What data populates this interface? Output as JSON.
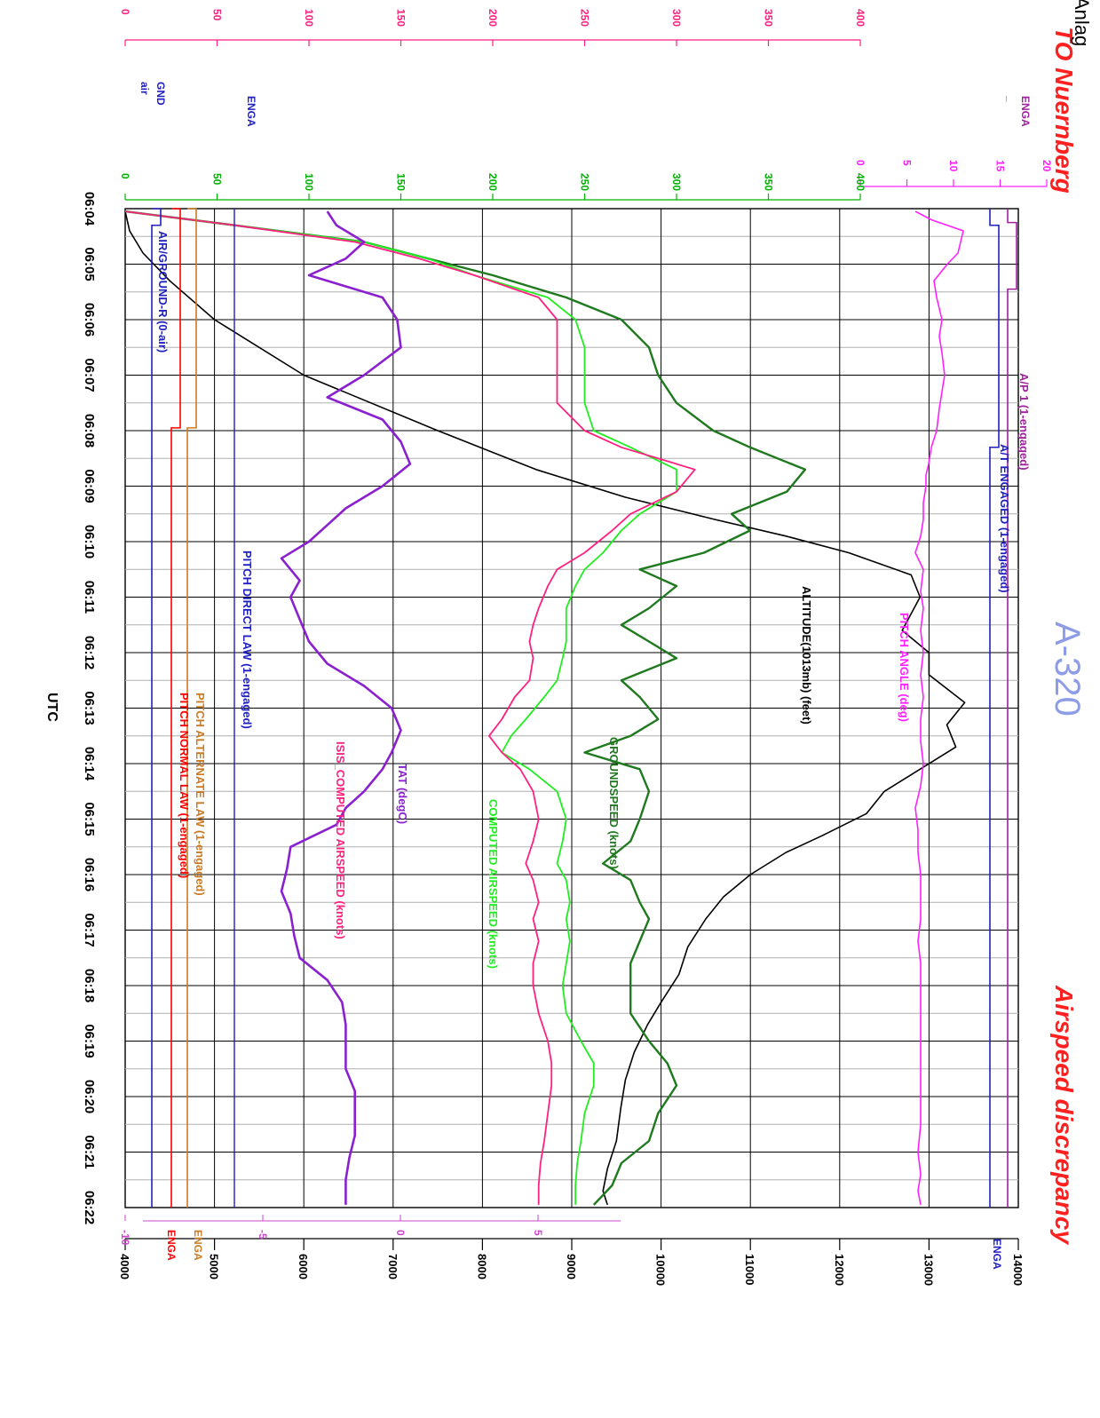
{
  "title": {
    "left": "TO Nuernberg",
    "right": "Airspeed   discrepancy",
    "aircraft": "A-320",
    "corner": "Anlag",
    "utc": "UTC"
  },
  "colors": {
    "red_title": "#ff2020",
    "aircraft": "#8c9ce6",
    "black": "#000000",
    "green": "#00b300",
    "dark_green": "#1f7a1f",
    "lime": "#20ee20",
    "magenta": "#ff20ff",
    "pink": "#ff2080",
    "purple": "#8a20d0",
    "dark_magenta": "#a020a0",
    "blue": "#2020c0",
    "orange": "#cc7a20",
    "red": "#ff0000"
  },
  "chart_data": {
    "type": "line",
    "x_unit": "UTC",
    "time_ticks": [
      "06:04",
      "06:05",
      "06:06",
      "06:07",
      "06:08",
      "06:09",
      "06:10",
      "06:11",
      "06:12",
      "06:13",
      "06:14",
      "06:15",
      "06:16",
      "06:17",
      "06:18",
      "06:19",
      "06:20",
      "06:21",
      "06:22"
    ],
    "xlim_minutes": [
      0,
      18
    ],
    "axes": {
      "altitude": {
        "ticks": [
          "14000",
          "13000",
          "12000",
          "11000",
          "10000",
          "9000",
          "8000",
          "7000",
          "6000",
          "5000",
          "4000"
        ],
        "range": [
          4000,
          14000
        ]
      },
      "pitch_law_scale": {
        "ticks": [
          "5",
          "0",
          "-5",
          "-10"
        ],
        "range": [
          -10,
          8
        ]
      },
      "pitch": {
        "ticks": [
          "20",
          "15",
          "10",
          "5",
          "0"
        ],
        "range": [
          0,
          20
        ]
      },
      "speed": {
        "ticks": [
          "400",
          "350",
          "300",
          "250",
          "200",
          "150",
          "100",
          "50",
          "0"
        ],
        "range": [
          0,
          400
        ]
      },
      "tat": {
        "ticks": [
          "400",
          "350",
          "300",
          "250",
          "200",
          "150",
          "100",
          "50",
          "0"
        ],
        "range": [
          0,
          400
        ]
      }
    },
    "discrete_labels": {
      "ap_engaged": "ENGA",
      "at_engaged": "ENGA",
      "alt_law_engaged": "ENGA",
      "normal_law_engaged": "ENGA",
      "direct_law_engaged": "ENGA",
      "gnd": "GND",
      "air": "air",
      "dash": "_"
    },
    "series": [
      {
        "name": "ALTITUDE(1013mb)  (feet)",
        "key": "altitude",
        "t": [
          0.05,
          0.4,
          0.8,
          1.3,
          2.0,
          3.0,
          4.0,
          4.7,
          5.2,
          5.6,
          5.9,
          6.2,
          6.6,
          7.0,
          7.6,
          8.0,
          8.4,
          8.9,
          9.3,
          9.7,
          10.1,
          10.5,
          10.9,
          11.3,
          11.6,
          12.0,
          12.4,
          12.8,
          13.3,
          13.8,
          14.3,
          14.7,
          15.2,
          15.7,
          16.2,
          16.8,
          17.3,
          17.7,
          17.95
        ],
        "v": [
          4000,
          4050,
          4200,
          4500,
          5000,
          6000,
          7500,
          8600,
          9600,
          10600,
          11400,
          12100,
          12800,
          12900,
          12700,
          13000,
          13000,
          13400,
          13200,
          13300,
          12900,
          12500,
          12300,
          11800,
          11400,
          11000,
          10700,
          10500,
          10300,
          10200,
          10000,
          9850,
          9700,
          9600,
          9550,
          9500,
          9400,
          9350,
          9400
        ]
      },
      {
        "name": "GROUNDSPEED  (knots)",
        "key": "groundspeed",
        "t": [
          0.05,
          0.3,
          0.6,
          0.9,
          1.2,
          1.6,
          2.0,
          2.5,
          3.0,
          3.5,
          4.0,
          4.3,
          4.7,
          5.1,
          5.5,
          5.8,
          6.2,
          6.5,
          6.8,
          7.2,
          7.5,
          7.8,
          8.1,
          8.5,
          8.8,
          9.2,
          9.5,
          9.8,
          10.1,
          10.5,
          11.0,
          11.4,
          11.8,
          12.1,
          12.5,
          12.8,
          13.2,
          13.6,
          14.0,
          14.5,
          15.0,
          15.4,
          15.8,
          16.3,
          16.8,
          17.2,
          17.6,
          17.95
        ],
        "v": [
          0,
          60,
          130,
          165,
          200,
          240,
          270,
          285,
          290,
          300,
          320,
          340,
          370,
          360,
          330,
          340,
          315,
          280,
          300,
          285,
          270,
          285,
          300,
          270,
          280,
          290,
          275,
          250,
          280,
          285,
          280,
          275,
          260,
          275,
          280,
          285,
          280,
          275,
          275,
          275,
          285,
          295,
          300,
          290,
          285,
          270,
          265,
          255
        ]
      },
      {
        "name": "COMPUTED  AIRSPEED  (knots)",
        "key": "cas",
        "t": [
          0.05,
          0.3,
          0.6,
          0.9,
          1.2,
          1.6,
          2.0,
          2.5,
          3.0,
          3.5,
          4.0,
          4.3,
          4.7,
          5.1,
          5.5,
          5.8,
          6.2,
          6.5,
          6.8,
          7.2,
          7.5,
          7.8,
          8.1,
          8.5,
          8.8,
          9.2,
          9.5,
          9.8,
          10.1,
          10.5,
          11.0,
          11.4,
          11.8,
          12.1,
          12.5,
          12.8,
          13.2,
          13.6,
          14.0,
          14.5,
          15.0,
          15.4,
          15.8,
          16.3,
          16.8,
          17.2,
          17.6,
          17.95
        ],
        "v": [
          0,
          60,
          130,
          165,
          190,
          230,
          245,
          250,
          250,
          250,
          255,
          275,
          300,
          300,
          280,
          270,
          260,
          250,
          245,
          240,
          240,
          240,
          238,
          235,
          228,
          218,
          210,
          205,
          220,
          235,
          240,
          238,
          235,
          240,
          242,
          240,
          242,
          240,
          238,
          240,
          248,
          255,
          255,
          250,
          248,
          246,
          245,
          245
        ]
      },
      {
        "name": "ISIS_COMPUTED  AIRSPEED  (knots)",
        "key": "isis",
        "t": [
          0.05,
          0.3,
          0.6,
          0.9,
          1.2,
          1.6,
          2.0,
          2.5,
          3.0,
          3.5,
          4.0,
          4.3,
          4.7,
          5.1,
          5.5,
          5.8,
          6.2,
          6.5,
          6.8,
          7.2,
          7.5,
          7.8,
          8.1,
          8.5,
          8.8,
          9.2,
          9.5,
          9.8,
          10.1,
          10.5,
          11.0,
          11.4,
          11.8,
          12.1,
          12.5,
          12.8,
          13.2,
          13.6,
          14.0,
          14.5,
          15.0,
          15.4,
          15.8,
          16.3,
          16.8,
          17.2,
          17.6,
          17.95
        ],
        "v": [
          0,
          60,
          125,
          160,
          190,
          225,
          235,
          235,
          235,
          235,
          250,
          270,
          310,
          300,
          275,
          265,
          250,
          235,
          230,
          225,
          222,
          220,
          222,
          220,
          212,
          205,
          198,
          205,
          215,
          222,
          225,
          222,
          218,
          222,
          225,
          222,
          225,
          222,
          222,
          225,
          230,
          232,
          232,
          230,
          228,
          226,
          225,
          225
        ]
      },
      {
        "name": "TAT  (degC)",
        "key": "tat",
        "t": [
          0.05,
          0.3,
          0.6,
          0.9,
          1.2,
          1.6,
          2.0,
          2.5,
          3.0,
          3.4,
          3.8,
          4.2,
          4.6,
          5.0,
          5.4,
          5.7,
          6.0,
          6.3,
          6.7,
          7.0,
          7.4,
          7.8,
          8.2,
          8.6,
          9.0,
          9.4,
          9.8,
          10.1,
          10.5,
          10.8,
          11.1,
          11.5,
          11.9,
          12.3,
          12.7,
          13.1,
          13.5,
          13.9,
          14.3,
          14.7,
          15.1,
          15.5,
          15.9,
          16.3,
          16.7,
          17.1,
          17.5,
          17.95
        ],
        "v": [
          110,
          115,
          130,
          120,
          100,
          140,
          148,
          150,
          130,
          110,
          140,
          150,
          155,
          140,
          120,
          110,
          100,
          85,
          95,
          90,
          95,
          100,
          110,
          130,
          145,
          150,
          145,
          140,
          130,
          120,
          115,
          90,
          88,
          85,
          90,
          92,
          95,
          110,
          118,
          120,
          120,
          120,
          125,
          125,
          125,
          122,
          120,
          120
        ]
      },
      {
        "name": "PITCH  ANGLE  (deg)",
        "key": "pitch",
        "t": [
          0.05,
          0.2,
          0.4,
          0.6,
          0.8,
          1.0,
          1.3,
          1.6,
          2.0,
          2.3,
          2.6,
          3.0,
          3.3,
          3.6,
          4.0,
          4.3,
          4.6,
          4.8,
          5.0,
          5.3,
          5.6,
          5.9,
          6.2,
          6.5,
          6.9,
          7.2,
          7.6,
          8.0,
          8.4,
          8.8,
          9.2,
          9.6,
          10.0,
          10.4,
          10.8,
          11.2,
          11.6,
          12.0,
          12.4,
          12.8,
          13.2,
          13.6,
          14.0,
          14.4,
          14.8,
          15.2,
          15.6,
          16.0,
          16.5,
          17.0,
          17.4,
          17.7,
          17.95
        ],
        "v": [
          0,
          6,
          18,
          17,
          16,
          12,
          7,
          8,
          10,
          9,
          10,
          11,
          10,
          9,
          8,
          6,
          5,
          4,
          4,
          3,
          3,
          2,
          0,
          3,
          2,
          3,
          2,
          3,
          2,
          3,
          2,
          2,
          3,
          2,
          0,
          1,
          1,
          2,
          2,
          2,
          1,
          2,
          2,
          2,
          2,
          2,
          2,
          2,
          2,
          1,
          2,
          1,
          2
        ]
      }
    ],
    "discretes": [
      {
        "name": "A/P 1  (1-engaged)",
        "key": "ap",
        "on_from": 0.25,
        "on_to": 1.45
      },
      {
        "name": "A/T  ENGAGED  (1-engaged)",
        "key": "at",
        "on_from": 0.3,
        "on_to": 4.3
      },
      {
        "name": "PITCH  DIRECT  LAW  (1-engaged)",
        "key": "direct",
        "on_from": null,
        "on_to": null
      },
      {
        "name": "PITCH  ALTERNATE  LAW  (1-engaged)",
        "key": "alternate",
        "on_from": 0.0,
        "on_to": 3.95
      },
      {
        "name": "PITCH  NORMAL  LAW  (1-engaged)",
        "key": "normal",
        "on_from": 0.0,
        "on_to": 3.95
      },
      {
        "name": "AIR/GROUND-R  (0-air)",
        "key": "airground",
        "on_from": 0.0,
        "on_to": 0.3
      }
    ]
  }
}
